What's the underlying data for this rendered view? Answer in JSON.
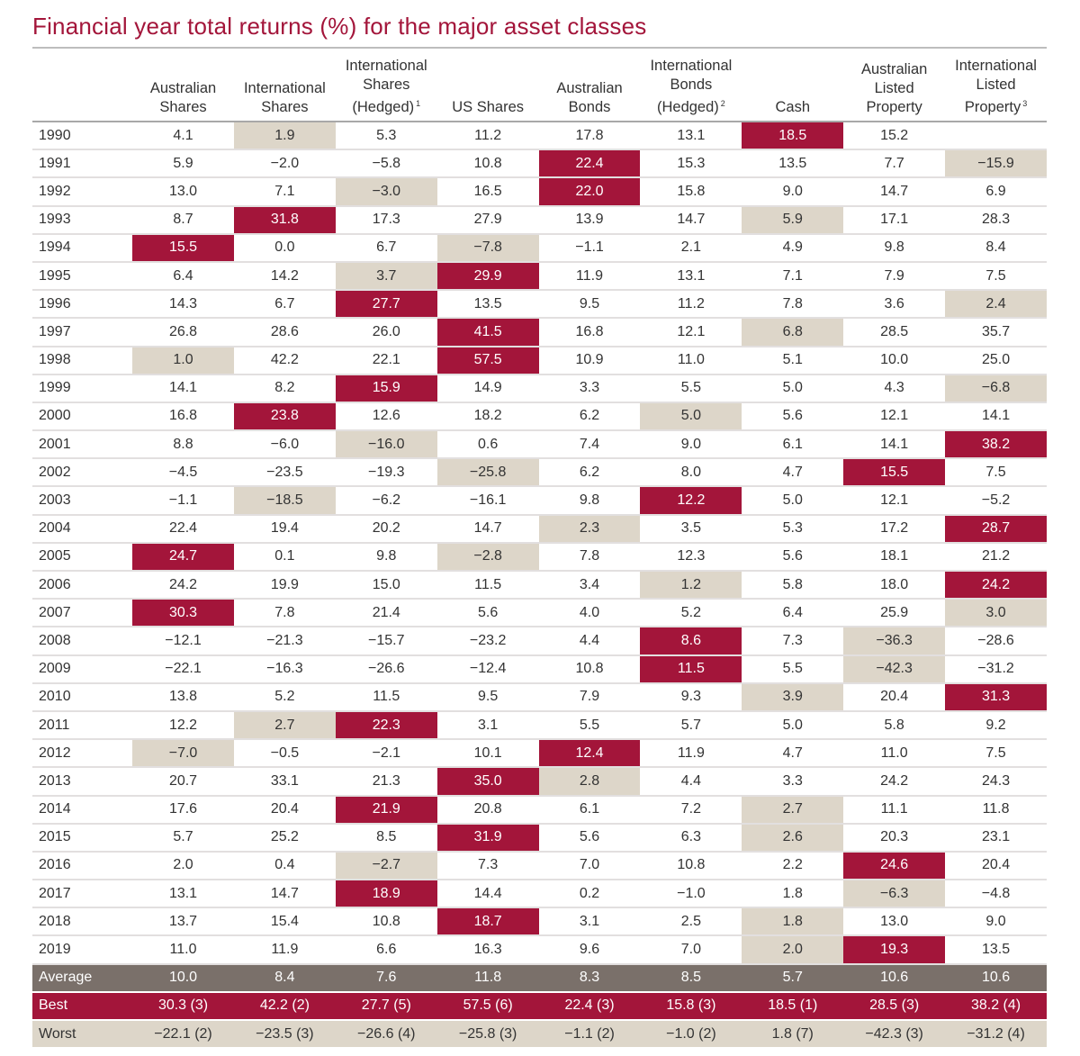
{
  "title": "Financial year total returns (%) for the major asset classes",
  "columns": [
    {
      "label": "Australian\nShares",
      "sup": ""
    },
    {
      "label": "International\nShares",
      "sup": ""
    },
    {
      "label": "International\nShares\n(Hedged)",
      "sup": "1"
    },
    {
      "label": "US Shares",
      "sup": ""
    },
    {
      "label": "Australian\nBonds",
      "sup": ""
    },
    {
      "label": "International\nBonds\n(Hedged)",
      "sup": "2"
    },
    {
      "label": "Cash",
      "sup": ""
    },
    {
      "label": "Australian\nListed\nProperty",
      "sup": ""
    },
    {
      "label": "International\nListed\nProperty",
      "sup": "3"
    }
  ],
  "colors": {
    "best": "#a3153a",
    "worst": "#ddd6c9",
    "average": "#7a706a"
  },
  "rows": [
    {
      "year": "1990",
      "values": [
        "4.1",
        "1.9",
        "5.3",
        "11.2",
        "17.8",
        "13.1",
        "18.5",
        "15.2",
        ""
      ],
      "best": 6,
      "worst": 1
    },
    {
      "year": "1991",
      "values": [
        "5.9",
        "−2.0",
        "−5.8",
        "10.8",
        "22.4",
        "15.3",
        "13.5",
        "7.7",
        "−15.9"
      ],
      "best": 4,
      "worst": 8
    },
    {
      "year": "1992",
      "values": [
        "13.0",
        "7.1",
        "−3.0",
        "16.5",
        "22.0",
        "15.8",
        "9.0",
        "14.7",
        "6.9"
      ],
      "best": 4,
      "worst": 2
    },
    {
      "year": "1993",
      "values": [
        "8.7",
        "31.8",
        "17.3",
        "27.9",
        "13.9",
        "14.7",
        "5.9",
        "17.1",
        "28.3"
      ],
      "best": 1,
      "worst": 6
    },
    {
      "year": "1994",
      "values": [
        "15.5",
        "0.0",
        "6.7",
        "−7.8",
        "−1.1",
        "2.1",
        "4.9",
        "9.8",
        "8.4"
      ],
      "best": 0,
      "worst": 3
    },
    {
      "year": "1995",
      "values": [
        "6.4",
        "14.2",
        "3.7",
        "29.9",
        "11.9",
        "13.1",
        "7.1",
        "7.9",
        "7.5"
      ],
      "best": 3,
      "worst": 2
    },
    {
      "year": "1996",
      "values": [
        "14.3",
        "6.7",
        "27.7",
        "13.5",
        "9.5",
        "11.2",
        "7.8",
        "3.6",
        "2.4"
      ],
      "best": 2,
      "worst": 8
    },
    {
      "year": "1997",
      "values": [
        "26.8",
        "28.6",
        "26.0",
        "41.5",
        "16.8",
        "12.1",
        "6.8",
        "28.5",
        "35.7"
      ],
      "best": 3,
      "worst": 6
    },
    {
      "year": "1998",
      "values": [
        "1.0",
        "42.2",
        "22.1",
        "57.5",
        "10.9",
        "11.0",
        "5.1",
        "10.0",
        "25.0"
      ],
      "best": 3,
      "worst": 0
    },
    {
      "year": "1999",
      "values": [
        "14.1",
        "8.2",
        "15.9",
        "14.9",
        "3.3",
        "5.5",
        "5.0",
        "4.3",
        "−6.8"
      ],
      "best": 2,
      "worst": 8
    },
    {
      "year": "2000",
      "values": [
        "16.8",
        "23.8",
        "12.6",
        "18.2",
        "6.2",
        "5.0",
        "5.6",
        "12.1",
        "14.1"
      ],
      "best": 1,
      "worst": 5
    },
    {
      "year": "2001",
      "values": [
        "8.8",
        "−6.0",
        "−16.0",
        "0.6",
        "7.4",
        "9.0",
        "6.1",
        "14.1",
        "38.2"
      ],
      "best": 8,
      "worst": 2
    },
    {
      "year": "2002",
      "values": [
        "−4.5",
        "−23.5",
        "−19.3",
        "−25.8",
        "6.2",
        "8.0",
        "4.7",
        "15.5",
        "7.5"
      ],
      "best": 7,
      "worst": 3
    },
    {
      "year": "2003",
      "values": [
        "−1.1",
        "−18.5",
        "−6.2",
        "−16.1",
        "9.8",
        "12.2",
        "5.0",
        "12.1",
        "−5.2"
      ],
      "best": 5,
      "worst": 1
    },
    {
      "year": "2004",
      "values": [
        "22.4",
        "19.4",
        "20.2",
        "14.7",
        "2.3",
        "3.5",
        "5.3",
        "17.2",
        "28.7"
      ],
      "best": 8,
      "worst": 4
    },
    {
      "year": "2005",
      "values": [
        "24.7",
        "0.1",
        "9.8",
        "−2.8",
        "7.8",
        "12.3",
        "5.6",
        "18.1",
        "21.2"
      ],
      "best": 0,
      "worst": 3
    },
    {
      "year": "2006",
      "values": [
        "24.2",
        "19.9",
        "15.0",
        "11.5",
        "3.4",
        "1.2",
        "5.8",
        "18.0",
        "24.2"
      ],
      "best": 8,
      "worst": 5
    },
    {
      "year": "2007",
      "values": [
        "30.3",
        "7.8",
        "21.4",
        "5.6",
        "4.0",
        "5.2",
        "6.4",
        "25.9",
        "3.0"
      ],
      "best": 0,
      "worst": 8
    },
    {
      "year": "2008",
      "values": [
        "−12.1",
        "−21.3",
        "−15.7",
        "−23.2",
        "4.4",
        "8.6",
        "7.3",
        "−36.3",
        "−28.6"
      ],
      "best": 5,
      "worst": 7
    },
    {
      "year": "2009",
      "values": [
        "−22.1",
        "−16.3",
        "−26.6",
        "−12.4",
        "10.8",
        "11.5",
        "5.5",
        "−42.3",
        "−31.2"
      ],
      "best": 5,
      "worst": 7
    },
    {
      "year": "2010",
      "values": [
        "13.8",
        "5.2",
        "11.5",
        "9.5",
        "7.9",
        "9.3",
        "3.9",
        "20.4",
        "31.3"
      ],
      "best": 8,
      "worst": 6
    },
    {
      "year": "2011",
      "values": [
        "12.2",
        "2.7",
        "22.3",
        "3.1",
        "5.5",
        "5.7",
        "5.0",
        "5.8",
        "9.2"
      ],
      "best": 2,
      "worst": 1
    },
    {
      "year": "2012",
      "values": [
        "−7.0",
        "−0.5",
        "−2.1",
        "10.1",
        "12.4",
        "11.9",
        "4.7",
        "11.0",
        "7.5"
      ],
      "best": 4,
      "worst": 0
    },
    {
      "year": "2013",
      "values": [
        "20.7",
        "33.1",
        "21.3",
        "35.0",
        "2.8",
        "4.4",
        "3.3",
        "24.2",
        "24.3"
      ],
      "best": 3,
      "worst": 4
    },
    {
      "year": "2014",
      "values": [
        "17.6",
        "20.4",
        "21.9",
        "20.8",
        "6.1",
        "7.2",
        "2.7",
        "11.1",
        "11.8"
      ],
      "best": 2,
      "worst": 6
    },
    {
      "year": "2015",
      "values": [
        "5.7",
        "25.2",
        "8.5",
        "31.9",
        "5.6",
        "6.3",
        "2.6",
        "20.3",
        "23.1"
      ],
      "best": 3,
      "worst": 6
    },
    {
      "year": "2016",
      "values": [
        "2.0",
        "0.4",
        "−2.7",
        "7.3",
        "7.0",
        "10.8",
        "2.2",
        "24.6",
        "20.4"
      ],
      "best": 7,
      "worst": 2
    },
    {
      "year": "2017",
      "values": [
        "13.1",
        "14.7",
        "18.9",
        "14.4",
        "0.2",
        "−1.0",
        "1.8",
        "−6.3",
        "−4.8"
      ],
      "best": 2,
      "worst": 7
    },
    {
      "year": "2018",
      "values": [
        "13.7",
        "15.4",
        "10.8",
        "18.7",
        "3.1",
        "2.5",
        "1.8",
        "13.0",
        "9.0"
      ],
      "best": 3,
      "worst": 6
    },
    {
      "year": "2019",
      "values": [
        "11.0",
        "11.9",
        "6.6",
        "16.3",
        "9.6",
        "7.0",
        "2.0",
        "19.3",
        "13.5"
      ],
      "best": 7,
      "worst": 6
    }
  ],
  "summary": [
    {
      "label": "Average",
      "kind": "avg",
      "values": [
        "10.0",
        "8.4",
        "7.6",
        "11.8",
        "8.3",
        "8.5",
        "5.7",
        "10.6",
        "10.6"
      ]
    },
    {
      "label": "Best",
      "kind": "bst",
      "values": [
        "30.3 (3)",
        "42.2 (2)",
        "27.7 (5)",
        "57.5 (6)",
        "22.4 (3)",
        "15.8 (3)",
        "18.5 (1)",
        "28.5 (3)",
        "38.2 (4)"
      ]
    },
    {
      "label": "Worst",
      "kind": "wst",
      "values": [
        "−22.1 (2)",
        "−23.5 (3)",
        "−26.6 (4)",
        "−25.8 (3)",
        "−1.1 (2)",
        "−1.0 (2)",
        "1.8 (7)",
        "−42.3 (3)",
        "−31.2 (4)"
      ]
    }
  ]
}
